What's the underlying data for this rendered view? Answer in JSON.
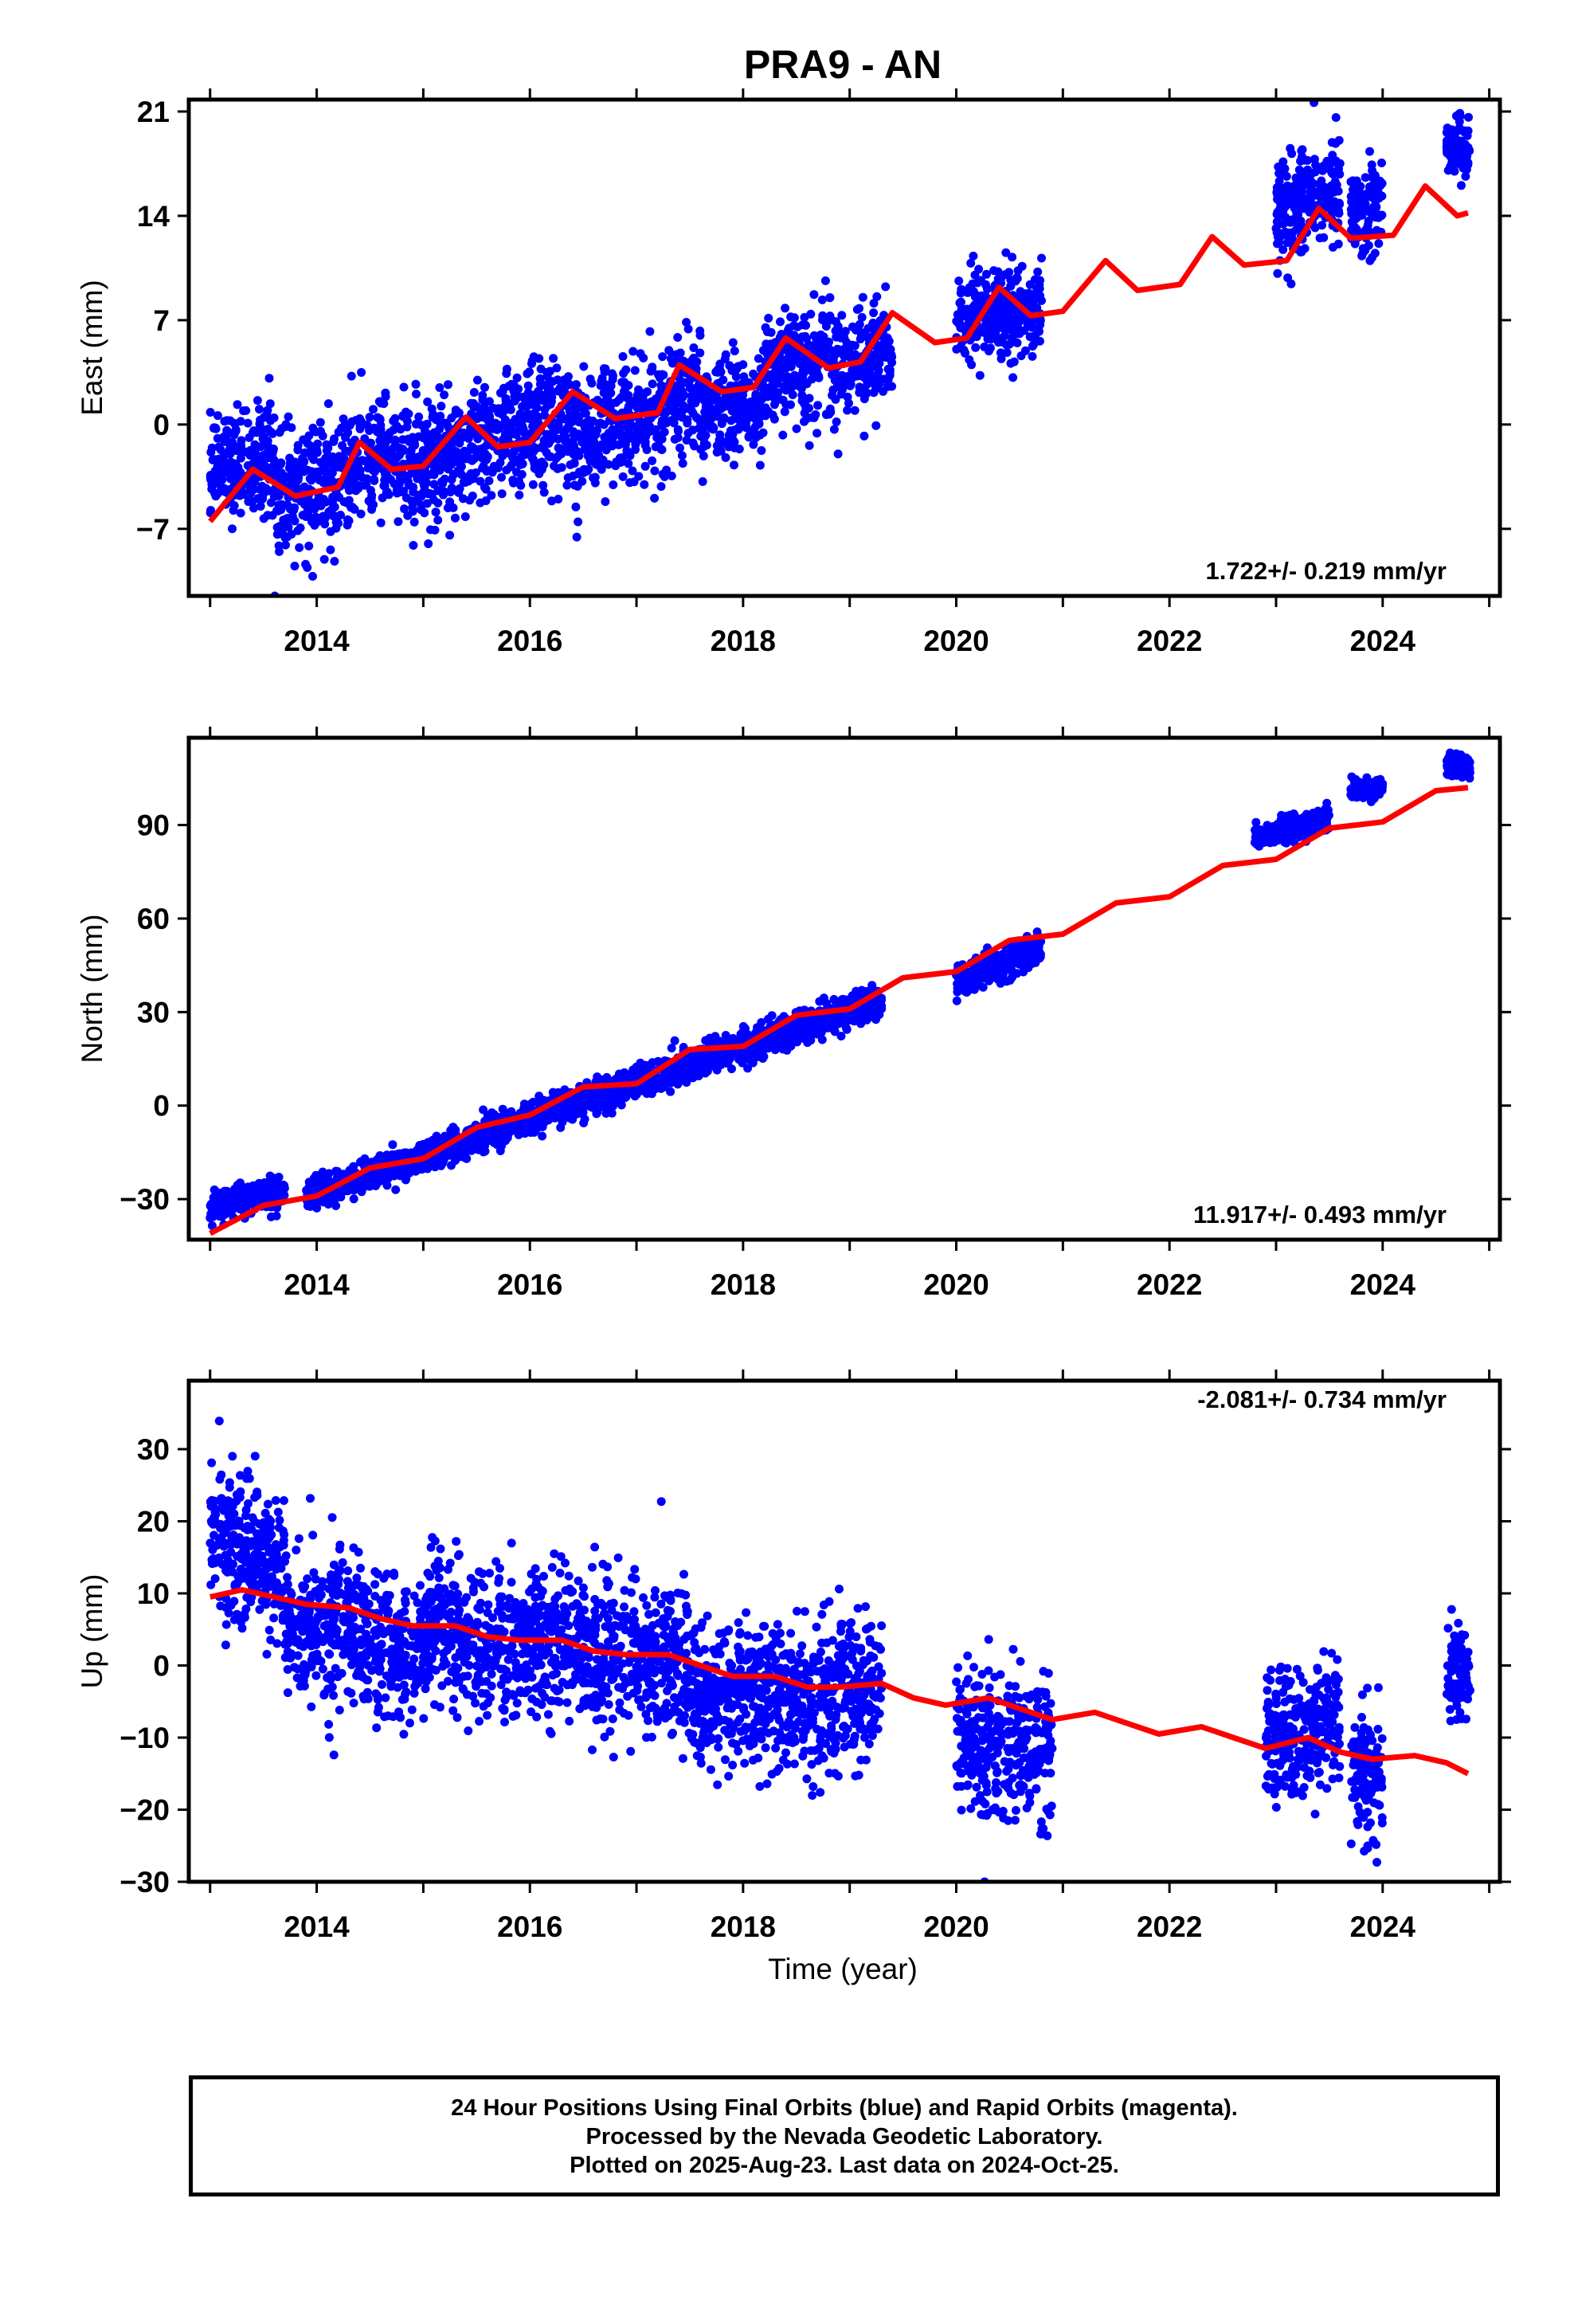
{
  "title": "PRA9 - AN",
  "xlabel": "Time (year)",
  "caption": {
    "line1": "24 Hour Positions Using Final Orbits (blue) and Rapid Orbits (magenta).",
    "line2": "Processed by the Nevada Geodetic Laboratory.",
    "line3": "Plotted on 2025-Aug-23. Last data on 2024-Oct-25."
  },
  "colors": {
    "observations": "#0000ff",
    "model": "#ff0000",
    "frame": "#000000"
  },
  "chart_data": [
    {
      "type": "scatter",
      "ylabel": "East (mm)",
      "rate_label": "1.722+/- 0.219 mm/yr",
      "xlim": [
        2012.8,
        2025.1
      ],
      "ylim": [
        -11.5,
        21.8
      ],
      "xticks": [
        2014,
        2016,
        2018,
        2020,
        2022,
        2024
      ],
      "yticks": [
        21,
        14,
        7,
        0,
        -7
      ],
      "ytick_labels": [
        "21",
        "14",
        "7",
        "0",
        "−7"
      ],
      "series": [
        {
          "role": "daily positions",
          "color": "#0000ff",
          "clusters": [
            {
              "x": [
                2013.0,
                2013.6
              ],
              "mean": [
                -3,
                -2
              ],
              "sd": 1.8
            },
            {
              "x": [
                2013.6,
                2014.2
              ],
              "mean": [
                -5,
                -4
              ],
              "sd": 2.0
            },
            {
              "x": [
                2014.2,
                2015.4
              ],
              "mean": [
                -3,
                -2
              ],
              "sd": 2.0
            },
            {
              "x": [
                2015.4,
                2016.4
              ],
              "mean": [
                -1.5,
                0.5
              ],
              "sd": 2.0
            },
            {
              "x": [
                2016.4,
                2017.6
              ],
              "mean": [
                -1,
                2
              ],
              "sd": 2.0
            },
            {
              "x": [
                2017.6,
                2018.2
              ],
              "mean": [
                0.5,
                1.5
              ],
              "sd": 1.8
            },
            {
              "x": [
                2018.2,
                2019.2
              ],
              "mean": [
                4,
                4
              ],
              "sd": 1.8
            },
            {
              "x": [
                2019.2,
                2019.4
              ],
              "mean": [
                5,
                5
              ],
              "sd": 1.5
            },
            {
              "x": [
                2020.0,
                2020.8
              ],
              "mean": [
                7,
                8
              ],
              "sd": 1.5
            },
            {
              "x": [
                2023.0,
                2023.6
              ],
              "mean": [
                14,
                16
              ],
              "sd": 1.8
            },
            {
              "x": [
                2023.7,
                2024.0
              ],
              "mean": [
                14,
                15
              ],
              "sd": 1.5
            },
            {
              "x": [
                2024.6,
                2024.82
              ],
              "mean": [
                18.5,
                18.5
              ],
              "sd": 1.0
            }
          ]
        },
        {
          "role": "model fit",
          "color": "#ff0000",
          "x": [
            2013.0,
            2013.4,
            2013.8,
            2014.2,
            2014.4,
            2014.7,
            2015.0,
            2015.4,
            2015.7,
            2016.0,
            2016.4,
            2016.8,
            2017.2,
            2017.4,
            2017.8,
            2018.1,
            2018.4,
            2018.8,
            2019.1,
            2019.4,
            2019.8,
            2020.1,
            2020.4,
            2020.7,
            2021.0,
            2021.4,
            2021.7,
            2022.1,
            2022.4,
            2022.7,
            2023.1,
            2023.4,
            2023.7,
            2024.1,
            2024.4,
            2024.7,
            2024.8
          ],
          "values": [
            -6.5,
            -3.0,
            -4.8,
            -4.2,
            -1.2,
            -3.0,
            -2.8,
            0.5,
            -1.5,
            -1.2,
            2.2,
            0.4,
            0.8,
            4.0,
            2.2,
            2.5,
            5.8,
            3.8,
            4.2,
            7.5,
            5.5,
            5.8,
            9.2,
            7.3,
            7.6,
            11.0,
            9.0,
            9.4,
            12.6,
            10.7,
            11.0,
            14.5,
            12.5,
            12.7,
            16.0,
            14.0,
            14.2
          ]
        }
      ]
    },
    {
      "type": "scatter",
      "ylabel": "North (mm)",
      "rate_label": "11.917+/- 0.493 mm/yr",
      "xlim": [
        2012.8,
        2025.1
      ],
      "ylim": [
        -43,
        118
      ],
      "xticks": [
        2014,
        2016,
        2018,
        2020,
        2022,
        2024
      ],
      "yticks": [
        90,
        60,
        30,
        0,
        -30
      ],
      "ytick_labels": [
        "90",
        "60",
        "30",
        "0",
        "−30"
      ],
      "series": [
        {
          "role": "daily positions",
          "color": "#0000ff",
          "clusters": [
            {
              "x": [
                2013.0,
                2013.7
              ],
              "mean": [
                -33,
                -27
              ],
              "sd": 2.5
            },
            {
              "x": [
                2013.9,
                2019.3
              ],
              "mean": [
                -29,
                34
              ],
              "sd": 2.5
            },
            {
              "x": [
                2020.0,
                2020.8
              ],
              "mean": [
                40,
                50
              ],
              "sd": 2.5
            },
            {
              "x": [
                2022.8,
                2023.5
              ],
              "mean": [
                86,
                92
              ],
              "sd": 2.0
            },
            {
              "x": [
                2023.7,
                2024.0
              ],
              "mean": [
                101,
                102
              ],
              "sd": 1.5
            },
            {
              "x": [
                2024.6,
                2024.82
              ],
              "mean": [
                110,
                108
              ],
              "sd": 2.0
            }
          ]
        },
        {
          "role": "model fit",
          "color": "#ff0000",
          "x": [
            2013.0,
            2013.5,
            2014.0,
            2014.5,
            2015.0,
            2015.5,
            2016.0,
            2016.5,
            2017.0,
            2017.5,
            2018.0,
            2018.5,
            2019.0,
            2019.5,
            2020.0,
            2020.5,
            2021.0,
            2021.5,
            2022.0,
            2022.5,
            2023.0,
            2023.5,
            2024.0,
            2024.5,
            2024.8
          ],
          "values": [
            -41,
            -32,
            -29,
            -20,
            -17,
            -7,
            -3,
            6,
            7,
            18,
            19,
            29,
            31,
            41,
            43,
            53,
            55,
            65,
            67,
            77,
            79,
            89,
            91,
            101,
            102
          ]
        }
      ]
    },
    {
      "type": "scatter",
      "ylabel": "Up (mm)",
      "rate_label": "-2.081+/- 0.734 mm/yr",
      "xlim": [
        2012.8,
        2025.1
      ],
      "ylim": [
        -30,
        39.5
      ],
      "xticks": [
        2014,
        2016,
        2018,
        2020,
        2022,
        2024
      ],
      "yticks": [
        30,
        20,
        10,
        0,
        -10,
        -20,
        -30
      ],
      "ytick_labels": [
        "30",
        "20",
        "10",
        "0",
        "−10",
        "−20",
        "−30"
      ],
      "series": [
        {
          "role": "daily positions",
          "color": "#0000ff",
          "clusters": [
            {
              "x": [
                2013.0,
                2013.7
              ],
              "mean": [
                18,
                13
              ],
              "sd": 5.0
            },
            {
              "x": [
                2013.7,
                2015.0
              ],
              "mean": [
                6,
                2
              ],
              "sd": 5.0
            },
            {
              "x": [
                2015.0,
                2017.5
              ],
              "mean": [
                4,
                1
              ],
              "sd": 5.0
            },
            {
              "x": [
                2017.5,
                2019.3
              ],
              "mean": [
                -4,
                -4
              ],
              "sd": 5.0
            },
            {
              "x": [
                2020.0,
                2020.9
              ],
              "mean": [
                -10,
                -12
              ],
              "sd": 5.0
            },
            {
              "x": [
                2022.9,
                2023.6
              ],
              "mean": [
                -10,
                -8
              ],
              "sd": 4.5
            },
            {
              "x": [
                2023.7,
                2024.0
              ],
              "mean": [
                -15,
                -16
              ],
              "sd": 4.5
            },
            {
              "x": [
                2024.6,
                2024.82
              ],
              "mean": [
                -1,
                -2
              ],
              "sd": 3.5
            }
          ]
        },
        {
          "role": "model fit",
          "color": "#ff0000",
          "x": [
            2013.0,
            2013.3,
            2013.6,
            2013.9,
            2014.3,
            2014.6,
            2014.9,
            2015.3,
            2015.6,
            2015.9,
            2016.3,
            2016.6,
            2016.9,
            2017.3,
            2017.6,
            2017.9,
            2018.3,
            2018.6,
            2018.9,
            2019.3,
            2019.6,
            2019.9,
            2020.3,
            2020.6,
            2020.9,
            2021.3,
            2021.6,
            2021.9,
            2022.3,
            2022.6,
            2022.9,
            2023.3,
            2023.6,
            2023.9,
            2024.3,
            2024.6,
            2024.8
          ],
          "values": [
            9.5,
            10.5,
            9.5,
            8.5,
            8.0,
            6.5,
            5.5,
            5.5,
            4.0,
            3.5,
            3.5,
            2.0,
            1.5,
            1.5,
            0.0,
            -1.5,
            -1.5,
            -3.0,
            -3.0,
            -2.5,
            -4.5,
            -5.5,
            -4.5,
            -6.0,
            -7.5,
            -6.5,
            -8.0,
            -9.5,
            -8.5,
            -10.0,
            -11.5,
            -10.0,
            -12.0,
            -13.0,
            -12.5,
            -13.5,
            -15.0
          ]
        }
      ]
    }
  ]
}
